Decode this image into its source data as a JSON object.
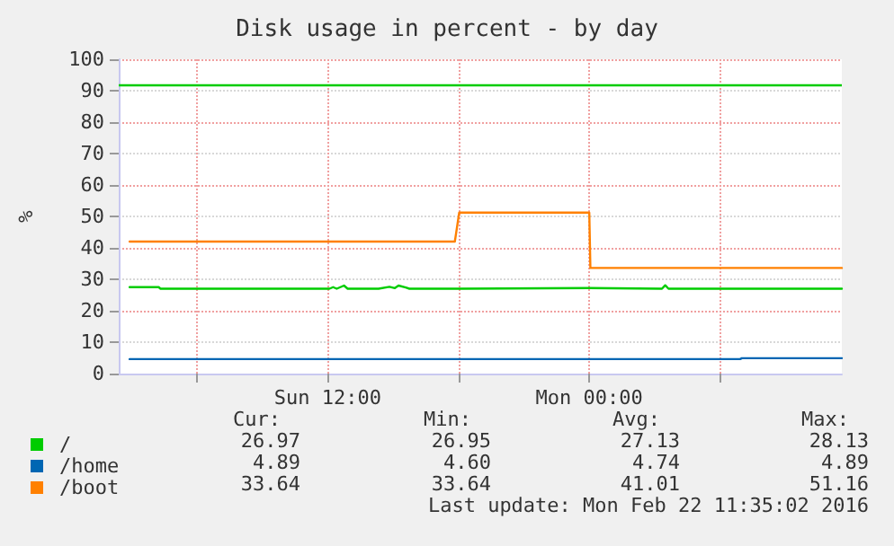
{
  "chart_data": {
    "type": "line",
    "title": "Disk usage in percent - by day",
    "ylabel": "%",
    "xlim": [
      "2016-02-21T02:25",
      "2016-02-22T11:35"
    ],
    "xticks": [
      {
        "value": "2016-02-21T06:00",
        "label": null
      },
      {
        "value": "2016-02-21T12:00",
        "label": "Sun 12:00"
      },
      {
        "value": "2016-02-21T18:00",
        "label": null
      },
      {
        "value": "2016-02-22T00:00",
        "label": "Mon 00:00"
      },
      {
        "value": "2016-02-22T06:00",
        "label": null
      }
    ],
    "ylim": [
      0,
      100
    ],
    "yticks": [
      0,
      10,
      20,
      30,
      40,
      50,
      60,
      70,
      80,
      90,
      100
    ],
    "grid": true,
    "legend": "bottom left",
    "marker": "none",
    "line_style": "solid",
    "ref_lines": [
      {
        "axis": "y",
        "value": 92,
        "color": "#00cc00"
      }
    ],
    "series": [
      {
        "name": "/",
        "color": "#00cc00",
        "x": [
          "2016-02-21T02:55",
          "2016-02-21T04:15",
          "2016-02-21T04:20",
          "2016-02-21T12:05",
          "2016-02-21T12:15",
          "2016-02-21T12:25",
          "2016-02-21T12:45",
          "2016-02-21T12:55",
          "2016-02-21T14:20",
          "2016-02-21T14:50",
          "2016-02-21T15:05",
          "2016-02-21T15:15",
          "2016-02-21T15:35",
          "2016-02-21T15:45",
          "2016-02-21T18:00",
          "2016-02-21T18:01",
          "2016-02-22T00:00",
          "2016-02-22T00:01",
          "2016-02-22T03:20",
          "2016-02-22T03:29",
          "2016-02-22T03:38",
          "2016-02-22T11:35"
        ],
        "values": [
          27.5,
          27.5,
          27,
          27,
          27.5,
          27,
          28,
          27,
          27,
          27.6,
          27.2,
          28,
          27.4,
          27,
          27,
          27.2,
          27.2,
          27,
          27,
          28.1,
          27,
          27
        ]
      },
      {
        "name": "/home",
        "color": "#0066b3",
        "x": [
          "2016-02-21T02:55",
          "2016-02-22T06:55",
          "2016-02-22T07:00",
          "2016-02-22T11:35"
        ],
        "values": [
          4.6,
          4.6,
          4.9,
          4.9
        ]
      },
      {
        "name": "/boot",
        "color": "#ff8000",
        "x": [
          "2016-02-21T02:55",
          "2016-02-21T17:50",
          "2016-02-21T18:02",
          "2016-02-22T00:00",
          "2016-02-22T00:03",
          "2016-02-22T11:35"
        ],
        "values": [
          42,
          42,
          51.2,
          51.2,
          33.6,
          33.6
        ]
      }
    ],
    "annotations": [
      "Cur:",
      "Min:",
      "Avg:",
      "Max:",
      "26.97",
      "26.95",
      "27.13",
      "28.13",
      "4.89",
      "4.60",
      "4.74",
      "4.89",
      "33.64",
      "33.64",
      "41.01",
      "51.16",
      "Last update: Mon Feb 22 11:35:02 2016"
    ]
  }
}
